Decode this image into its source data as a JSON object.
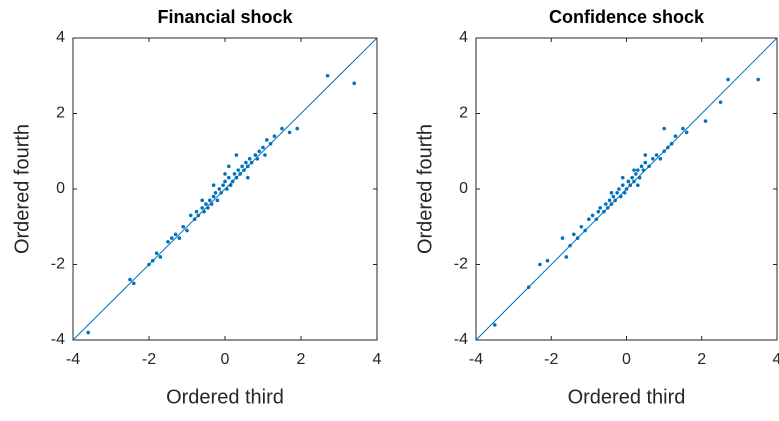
{
  "chart_data": [
    {
      "type": "scatter",
      "title": "Financial shock",
      "xlabel": "Ordered third",
      "ylabel": "Ordered fourth",
      "color": "#0072bd",
      "xlim": [
        -4,
        4
      ],
      "ylim": [
        -4,
        4
      ],
      "xticks": [
        -4,
        -2,
        0,
        2,
        4
      ],
      "yticks": [
        -4,
        -2,
        0,
        2,
        4
      ],
      "x": [
        -3.6,
        -2.5,
        -2.4,
        -2.0,
        -1.9,
        -1.8,
        -1.7,
        -1.5,
        -1.4,
        -1.3,
        -1.2,
        -1.1,
        -1.0,
        -0.9,
        -0.8,
        -0.75,
        -0.7,
        -0.6,
        -0.55,
        -0.5,
        -0.45,
        -0.4,
        -0.35,
        -0.3,
        -0.25,
        -0.2,
        -0.15,
        -0.1,
        -0.05,
        0.0,
        0.05,
        0.1,
        0.15,
        0.2,
        0.25,
        0.3,
        0.35,
        0.4,
        0.45,
        0.5,
        0.55,
        0.6,
        0.65,
        0.7,
        0.8,
        0.85,
        0.9,
        1.0,
        1.05,
        1.1,
        1.2,
        1.3,
        1.5,
        1.7,
        1.9,
        2.7,
        3.4,
        -0.6,
        0.1,
        -0.3,
        0.3,
        0.0,
        0.6
      ],
      "y": [
        -3.8,
        -2.4,
        -2.5,
        -2.0,
        -1.9,
        -1.7,
        -1.8,
        -1.4,
        -1.3,
        -1.2,
        -1.3,
        -1.0,
        -1.1,
        -0.7,
        -0.8,
        -0.6,
        -0.7,
        -0.5,
        -0.6,
        -0.4,
        -0.5,
        -0.3,
        -0.4,
        -0.2,
        -0.1,
        -0.3,
        0.0,
        -0.1,
        0.1,
        0.2,
        0.0,
        0.3,
        0.1,
        0.2,
        0.4,
        0.3,
        0.5,
        0.4,
        0.6,
        0.5,
        0.7,
        0.6,
        0.8,
        0.7,
        0.9,
        0.8,
        1.0,
        1.1,
        0.9,
        1.3,
        1.2,
        1.4,
        1.6,
        1.5,
        1.6,
        3.0,
        2.8,
        -0.3,
        0.6,
        0.1,
        0.9,
        0.4,
        0.3
      ]
    },
    {
      "type": "scatter",
      "title": "Confidence shock",
      "xlabel": "Ordered third",
      "ylabel": "Ordered fourth",
      "color": "#0072bd",
      "xlim": [
        -4,
        4
      ],
      "ylim": [
        -4,
        4
      ],
      "xticks": [
        -4,
        -2,
        0,
        2,
        4
      ],
      "yticks": [
        -4,
        -2,
        0,
        2,
        4
      ],
      "x": [
        -3.5,
        -2.6,
        -2.3,
        -2.1,
        -1.7,
        -1.6,
        -1.5,
        -1.4,
        -1.3,
        -1.2,
        -1.1,
        -1.0,
        -0.9,
        -0.8,
        -0.75,
        -0.7,
        -0.6,
        -0.55,
        -0.5,
        -0.45,
        -0.4,
        -0.35,
        -0.3,
        -0.25,
        -0.2,
        -0.15,
        -0.1,
        -0.05,
        0.0,
        0.05,
        0.1,
        0.15,
        0.2,
        0.25,
        0.3,
        0.35,
        0.4,
        0.45,
        0.5,
        0.6,
        0.7,
        0.8,
        0.9,
        1.0,
        1.0,
        1.1,
        1.2,
        1.3,
        1.5,
        1.6,
        2.1,
        2.5,
        2.7,
        3.5,
        -0.4,
        0.2,
        -0.1,
        0.5,
        0.3
      ],
      "y": [
        -3.6,
        -2.6,
        -2.0,
        -1.9,
        -1.3,
        -1.8,
        -1.5,
        -1.2,
        -1.3,
        -1.0,
        -1.1,
        -0.8,
        -0.7,
        -0.8,
        -0.6,
        -0.5,
        -0.6,
        -0.4,
        -0.5,
        -0.3,
        -0.4,
        -0.2,
        -0.3,
        -0.1,
        0.0,
        -0.2,
        0.1,
        -0.1,
        0.0,
        0.2,
        0.1,
        0.3,
        0.2,
        0.4,
        0.5,
        0.3,
        0.6,
        0.5,
        0.7,
        0.6,
        0.8,
        0.9,
        0.8,
        1.6,
        1.0,
        1.1,
        1.2,
        1.4,
        1.6,
        1.5,
        1.8,
        2.3,
        2.9,
        2.9,
        -0.1,
        0.5,
        0.3,
        0.9,
        0.1
      ]
    }
  ]
}
